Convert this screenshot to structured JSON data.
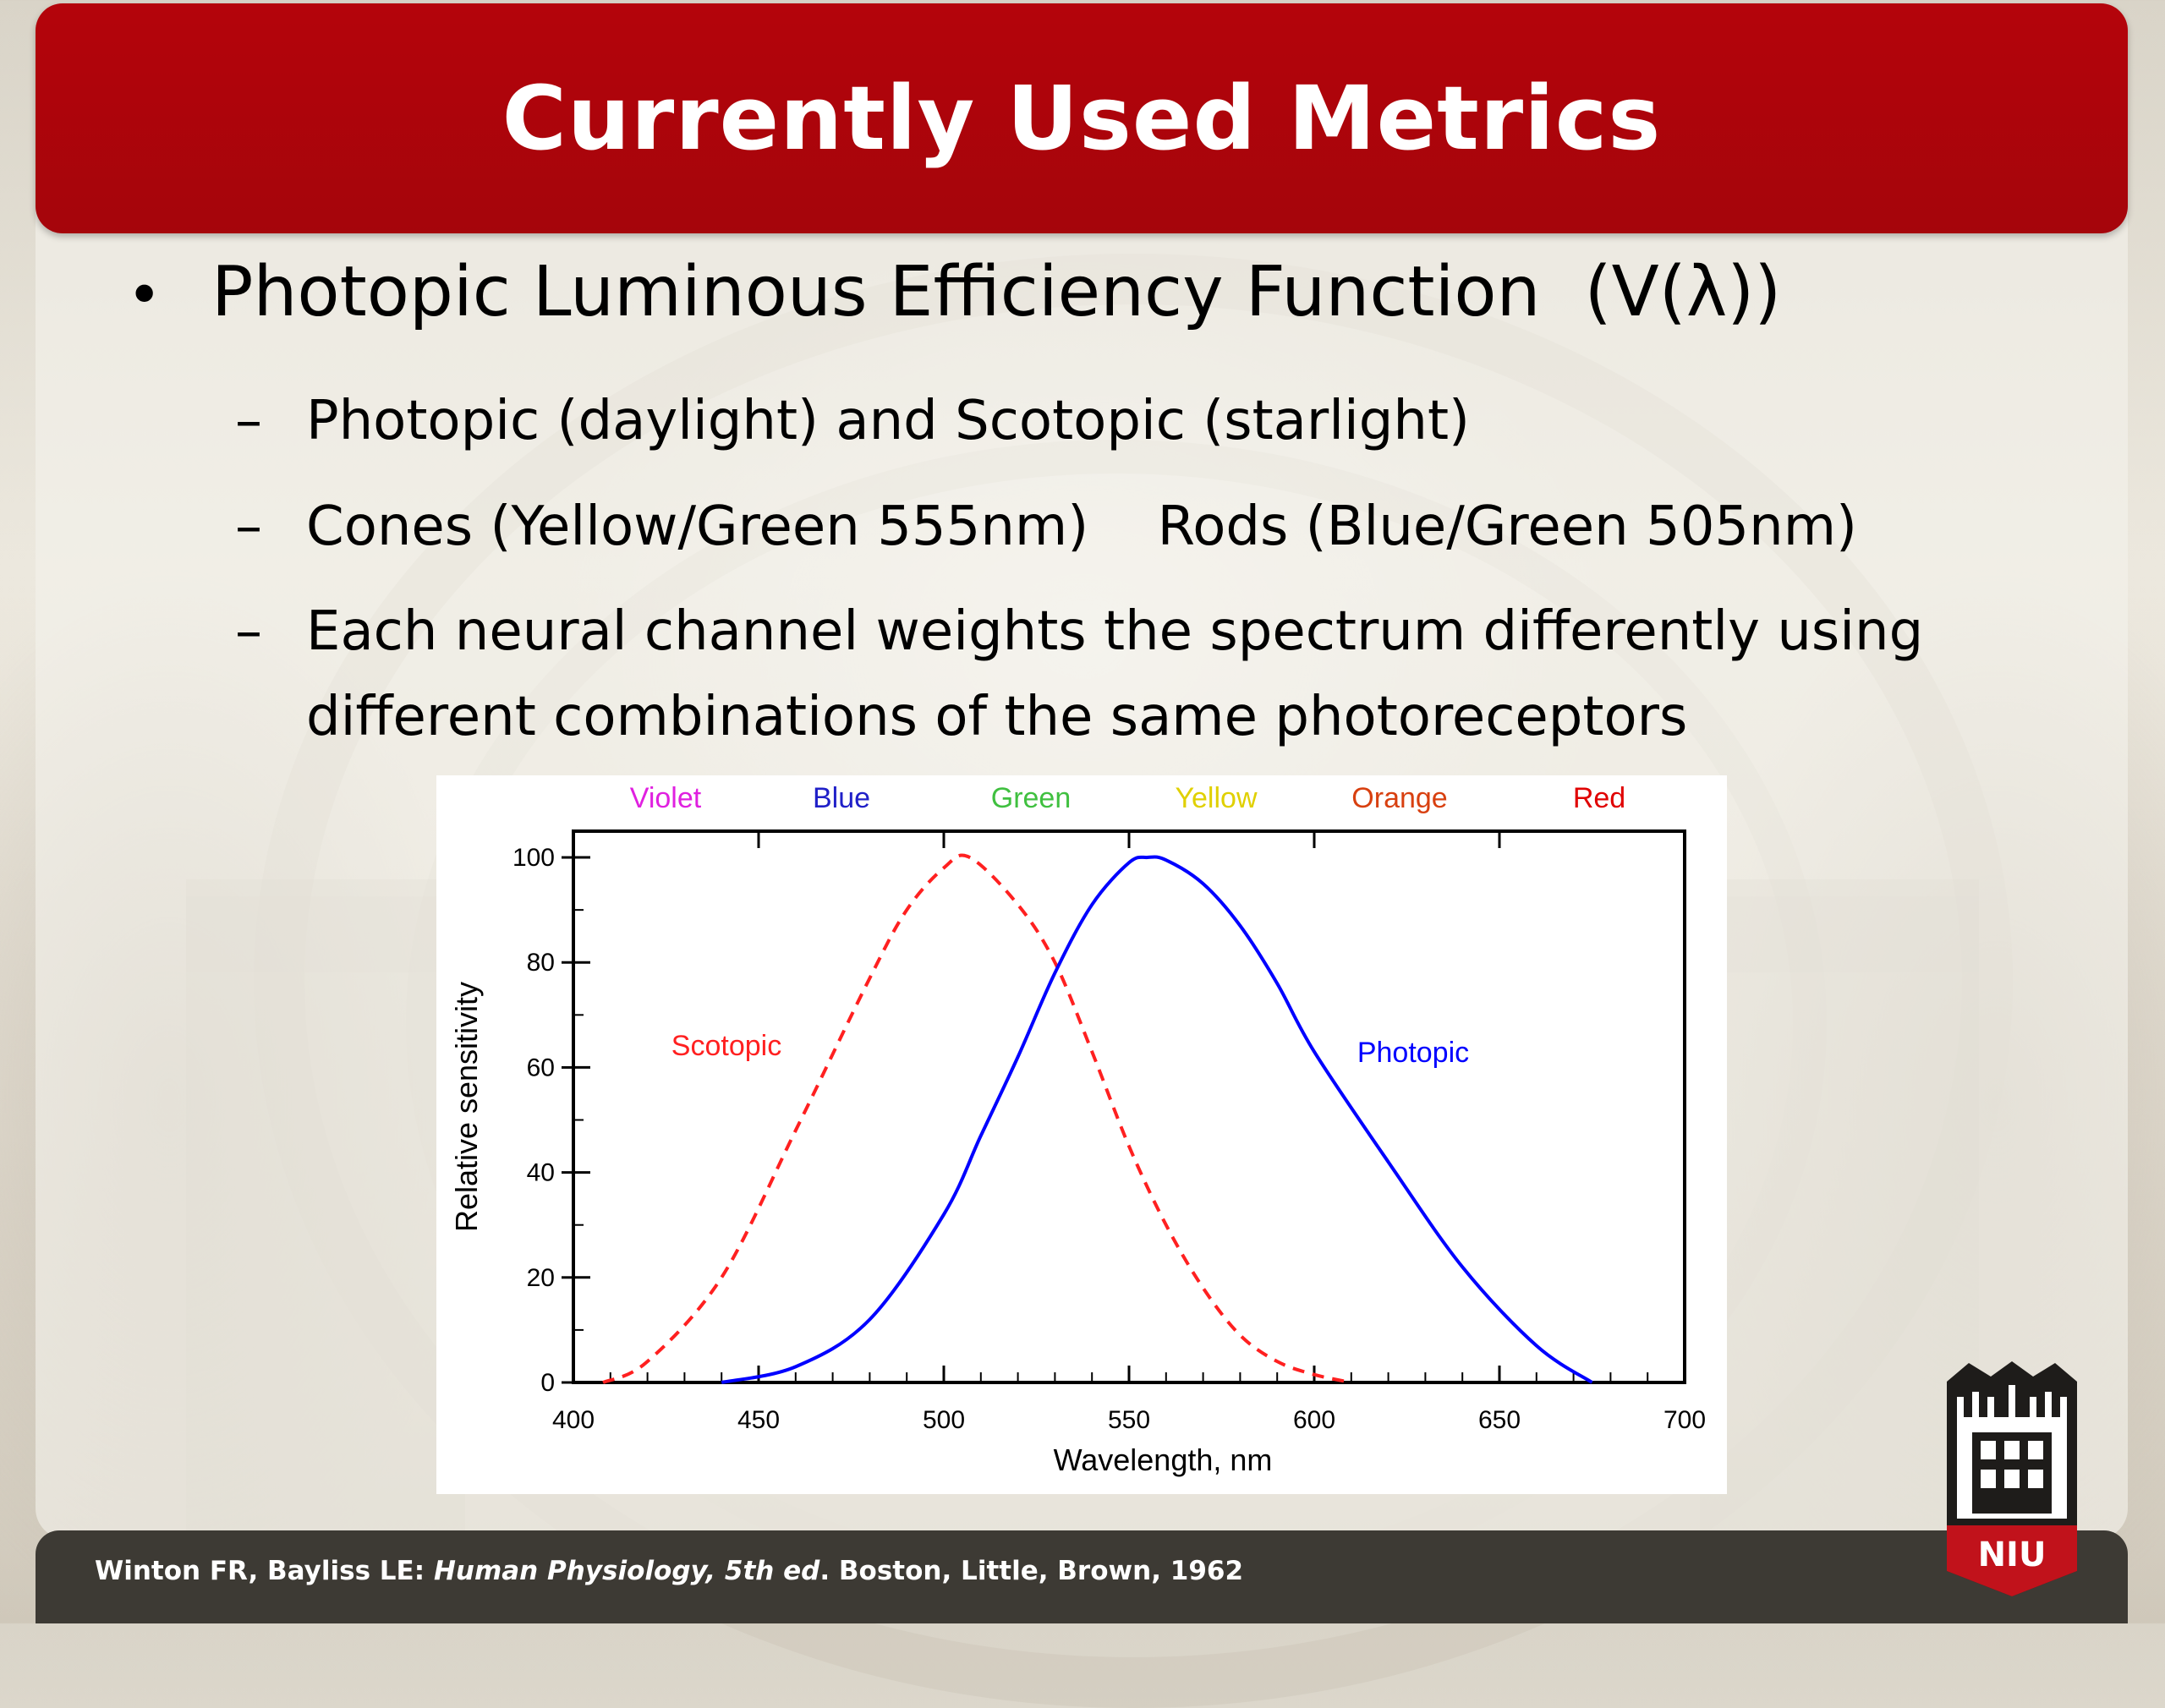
{
  "slide": {
    "title": "Currently Used Metrics",
    "bullet": "Photopic Luminous Efficiency Function  (V(λ))",
    "sub_bullets": [
      "Photopic (daylight) and Scotopic (starlight)",
      "Cones (Yellow/Green 555nm)    Rods (Blue/Green 505nm)",
      "Each neural channel weights the spectrum differently using",
      "different combinations of the same photoreceptors"
    ],
    "footer": {
      "authors": "Winton FR, Bayliss LE: ",
      "book": "Human Physiology, 5th ed",
      "rest": ". Boston, Little, Brown, 1962"
    },
    "logo_icon": "niu-tower-logo-icon",
    "logo_text": "NIU"
  },
  "chart_data": {
    "type": "line",
    "xlabel": "Wavelength, nm",
    "ylabel": "Relative sensitivity",
    "xlim": [
      400,
      700
    ],
    "ylim": [
      0,
      110
    ],
    "x_ticks": [
      400,
      450,
      500,
      550,
      600,
      650,
      700
    ],
    "y_ticks": [
      0,
      20,
      40,
      60,
      80,
      100
    ],
    "color_bands": [
      {
        "label": "Violet",
        "color": "#e020e0"
      },
      {
        "label": "Blue",
        "color": "#2020c8"
      },
      {
        "label": "Green",
        "color": "#40c040"
      },
      {
        "label": "Yellow",
        "color": "#e0d000"
      },
      {
        "label": "Orange",
        "color": "#d84010"
      },
      {
        "label": "Red",
        "color": "#e00000"
      }
    ],
    "series": [
      {
        "name": "Scotopic",
        "color": "#ff2020",
        "style": "dashed",
        "x": [
          408,
          420,
          440,
          460,
          480,
          490,
          500,
          507,
          520,
          530,
          540,
          550,
          560,
          570,
          580,
          590,
          600,
          610
        ],
        "y": [
          0,
          4,
          20,
          48,
          77,
          90,
          98,
          100,
          91,
          80,
          63,
          45,
          30,
          18,
          9,
          4,
          1.5,
          0
        ]
      },
      {
        "name": "Photopic",
        "color": "#0000ff",
        "style": "solid",
        "x": [
          440,
          460,
          480,
          500,
          510,
          520,
          530,
          540,
          550,
          555,
          560,
          570,
          580,
          590,
          600,
          620,
          640,
          660,
          675
        ],
        "y": [
          0,
          3,
          12,
          32,
          47,
          62,
          78,
          91,
          99,
          100,
          99.5,
          95,
          87,
          76,
          63,
          42,
          22,
          7,
          0
        ]
      }
    ]
  }
}
